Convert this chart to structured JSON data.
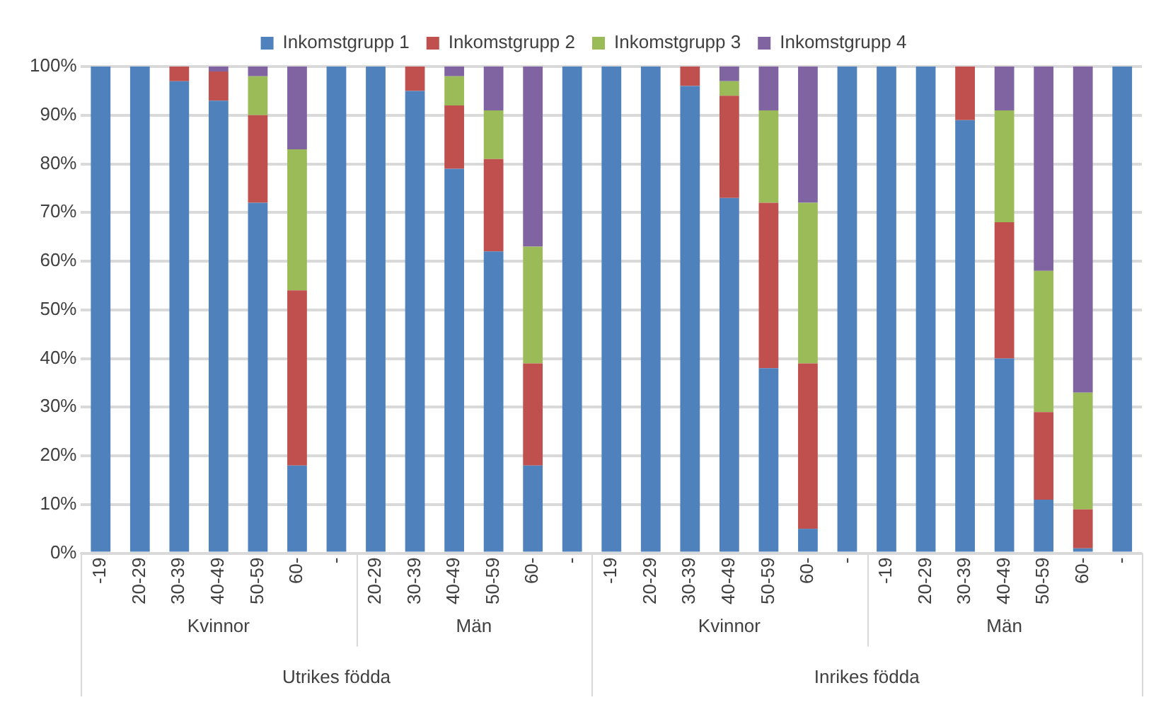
{
  "chart_data": {
    "type": "bar",
    "stacked": true,
    "legend": "top",
    "grid": "y",
    "categories": [
      "-19",
      "20-29",
      "30-39",
      "40-49",
      "50-59",
      "60-",
      "-",
      "20-29",
      "30-39",
      "40-49",
      "50-59",
      "60-",
      "-",
      "-19",
      "20-29",
      "30-39",
      "40-49",
      "50-59",
      "60-",
      "-",
      "-19",
      "20-29",
      "30-39",
      "40-49",
      "50-59",
      "60-",
      "-"
    ],
    "series": [
      {
        "name": "Inkomstgrupp 1",
        "color": "#4f81bd",
        "values": [
          100,
          100,
          97,
          93,
          72,
          18,
          100,
          100,
          95,
          79,
          62,
          18,
          100,
          100,
          100,
          96,
          73,
          38,
          5,
          100,
          100,
          100,
          89,
          40,
          11,
          1,
          100
        ]
      },
      {
        "name": "Inkomstgrupp 2",
        "color": "#c0504d",
        "values": [
          0,
          0,
          3,
          6,
          18,
          36,
          0,
          0,
          5,
          13,
          19,
          21,
          0,
          0,
          0,
          4,
          21,
          34,
          34,
          0,
          0,
          0,
          11,
          28,
          18,
          8,
          0
        ]
      },
      {
        "name": "Inkomstgrupp 3",
        "color": "#9bbb59",
        "values": [
          0,
          0,
          0,
          0,
          8,
          29,
          0,
          0,
          0,
          6,
          10,
          24,
          0,
          0,
          0,
          0,
          3,
          19,
          33,
          0,
          0,
          0,
          0,
          23,
          29,
          24,
          0
        ]
      },
      {
        "name": "Inkomstgrupp 4",
        "color": "#8064a2",
        "values": [
          0,
          0,
          0,
          1,
          2,
          17,
          0,
          0,
          0,
          2,
          9,
          37,
          0,
          0,
          0,
          0,
          3,
          9,
          28,
          0,
          0,
          0,
          0,
          9,
          42,
          67,
          0
        ]
      }
    ],
    "ylim": [
      0,
      100
    ],
    "yticks": [
      {
        "value": 0,
        "label": "0%"
      },
      {
        "value": 10,
        "label": "10%"
      },
      {
        "value": 20,
        "label": "20%"
      },
      {
        "value": 30,
        "label": "30%"
      },
      {
        "value": 40,
        "label": "40%"
      },
      {
        "value": 50,
        "label": "50%"
      },
      {
        "value": 60,
        "label": "60%"
      },
      {
        "value": 70,
        "label": "70%"
      },
      {
        "value": 80,
        "label": "80%"
      },
      {
        "value": 90,
        "label": "90%"
      },
      {
        "value": 100,
        "label": "100%"
      }
    ],
    "annotations": [
      "Kvinnor",
      "Män",
      "Kvinnor",
      "Män",
      "Utrikes födda",
      "Inrikes födda"
    ]
  }
}
